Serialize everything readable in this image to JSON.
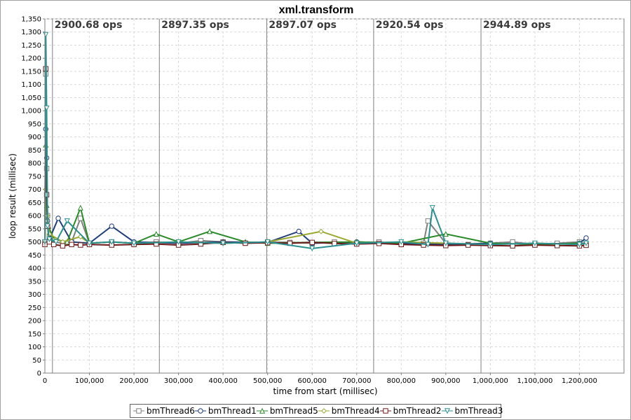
{
  "chart_data": {
    "type": "line",
    "title": "xml.transform",
    "xlabel": "time from start (millisec)",
    "ylabel": "loop result (millisec)",
    "xlim": [
      0,
      1300000
    ],
    "ylim": [
      0,
      1350
    ],
    "x_ticks": [
      100000,
      200000,
      300000,
      400000,
      500000,
      600000,
      700000,
      800000,
      900000,
      1000000,
      1100000,
      1200000
    ],
    "x_tick_labels": [
      "100,000",
      "200,000",
      "300,000",
      "400,000",
      "500,000",
      "600,000",
      "700,000",
      "800,000",
      "900,000",
      "1,000,000",
      "1,100,000",
      "1,200,000"
    ],
    "y_ticks": [
      0,
      50,
      100,
      150,
      200,
      250,
      300,
      350,
      400,
      450,
      500,
      550,
      600,
      650,
      700,
      750,
      800,
      850,
      900,
      950,
      1000,
      1050,
      1100,
      1150,
      1200,
      1250,
      1300,
      1350
    ],
    "y_tick_labels": [
      "0",
      "50",
      "100",
      "150",
      "200",
      "250",
      "300",
      "350",
      "400",
      "450",
      "500",
      "550",
      "600",
      "650",
      "700",
      "750",
      "800",
      "850",
      "900",
      "950",
      "1,000",
      "1,050",
      "1,100",
      "1,150",
      "1,200",
      "1,250",
      "1,300",
      "1,350"
    ],
    "x_origin_label": "0",
    "grid": true,
    "legend_position": "bottom",
    "markers": [
      {
        "x": 17000,
        "label": "2900.68 ops"
      },
      {
        "x": 257000,
        "label": "2897.35 ops"
      },
      {
        "x": 498000,
        "label": "2897.07 ops"
      },
      {
        "x": 738000,
        "label": "2920.54 ops"
      },
      {
        "x": 979000,
        "label": "2944.89 ops"
      }
    ],
    "series": [
      {
        "name": "bmThread6",
        "color": "#808080",
        "marker": "square",
        "x": [
          0,
          2000,
          4000,
          6000,
          10000,
          20000,
          40000,
          60000,
          80000,
          100000,
          150000,
          200000,
          250000,
          300000,
          350000,
          400000,
          450000,
          500000,
          550000,
          600000,
          650000,
          700000,
          750000,
          800000,
          850000,
          860000,
          900000,
          950000,
          1000000,
          1050000,
          1100000,
          1150000,
          1200000,
          1215000
        ],
        "y": [
          500,
          1140,
          780,
          600,
          520,
          500,
          495,
          500,
          590,
          495,
          500,
          495,
          500,
          495,
          505,
          500,
          495,
          500,
          498,
          495,
          500,
          495,
          500,
          492,
          495,
          580,
          495,
          490,
          495,
          500,
          490,
          495,
          500,
          490
        ]
      },
      {
        "name": "bmThread1",
        "color": "#1f3e7a",
        "marker": "circle",
        "x": [
          0,
          2000,
          4000,
          6000,
          10000,
          30000,
          60000,
          100000,
          150000,
          200000,
          300000,
          400000,
          500000,
          570000,
          600000,
          700000,
          800000,
          900000,
          1000000,
          1100000,
          1200000,
          1215000
        ],
        "y": [
          500,
          930,
          820,
          580,
          510,
          590,
          500,
          495,
          560,
          500,
          495,
          500,
          498,
          540,
          495,
          500,
          495,
          490,
          495,
          490,
          495,
          515
        ]
      },
      {
        "name": "bmThread5",
        "color": "#2a8a2a",
        "marker": "triangle-up",
        "x": [
          0,
          2000,
          4000,
          8000,
          20000,
          50000,
          80000,
          100000,
          150000,
          200000,
          250000,
          300000,
          370000,
          450000,
          500000,
          600000,
          700000,
          800000,
          900000,
          1000000,
          1100000,
          1200000,
          1215000
        ],
        "y": [
          500,
          870,
          640,
          560,
          510,
          500,
          630,
          495,
          500,
          495,
          530,
          500,
          540,
          500,
          495,
          498,
          500,
          495,
          530,
          495,
          490,
          495,
          490
        ]
      },
      {
        "name": "bmThread4",
        "color": "#9aa830",
        "marker": "diamond",
        "x": [
          0,
          2000,
          5000,
          10000,
          40000,
          80000,
          100000,
          150000,
          200000,
          300000,
          400000,
          500000,
          620000,
          700000,
          800000,
          900000,
          1000000,
          1100000,
          1200000,
          1215000
        ],
        "y": [
          500,
          700,
          600,
          530,
          500,
          520,
          495,
          500,
          495,
          500,
          495,
          500,
          540,
          495,
          500,
          495,
          490,
          495,
          490,
          495
        ]
      },
      {
        "name": "bmThread2",
        "color": "#6e1a1a",
        "marker": "square",
        "x": [
          0,
          2000,
          4000,
          6000,
          10000,
          20000,
          40000,
          60000,
          80000,
          100000,
          150000,
          200000,
          250000,
          300000,
          350000,
          400000,
          450000,
          500000,
          550000,
          600000,
          650000,
          700000,
          750000,
          800000,
          850000,
          900000,
          950000,
          1000000,
          1050000,
          1100000,
          1150000,
          1200000,
          1215000
        ],
        "y": [
          490,
          1160,
          680,
          560,
          500,
          490,
          485,
          490,
          488,
          490,
          488,
          490,
          492,
          488,
          492,
          498,
          495,
          497,
          495,
          498,
          494,
          492,
          494,
          490,
          488,
          486,
          488,
          486,
          485,
          488,
          486,
          485,
          487
        ]
      },
      {
        "name": "bmThread3",
        "color": "#2a9090",
        "marker": "triangle-down",
        "x": [
          0,
          2000,
          4000,
          6000,
          10000,
          25000,
          50000,
          100000,
          150000,
          200000,
          300000,
          400000,
          500000,
          600000,
          700000,
          800000,
          860000,
          870000,
          900000,
          1000000,
          1100000,
          1200000,
          1215000
        ],
        "y": [
          500,
          1290,
          1010,
          560,
          510,
          500,
          580,
          495,
          500,
          495,
          500,
          495,
          500,
          475,
          495,
          500,
          490,
          630,
          495,
          490,
          495,
          490,
          495
        ]
      }
    ]
  }
}
